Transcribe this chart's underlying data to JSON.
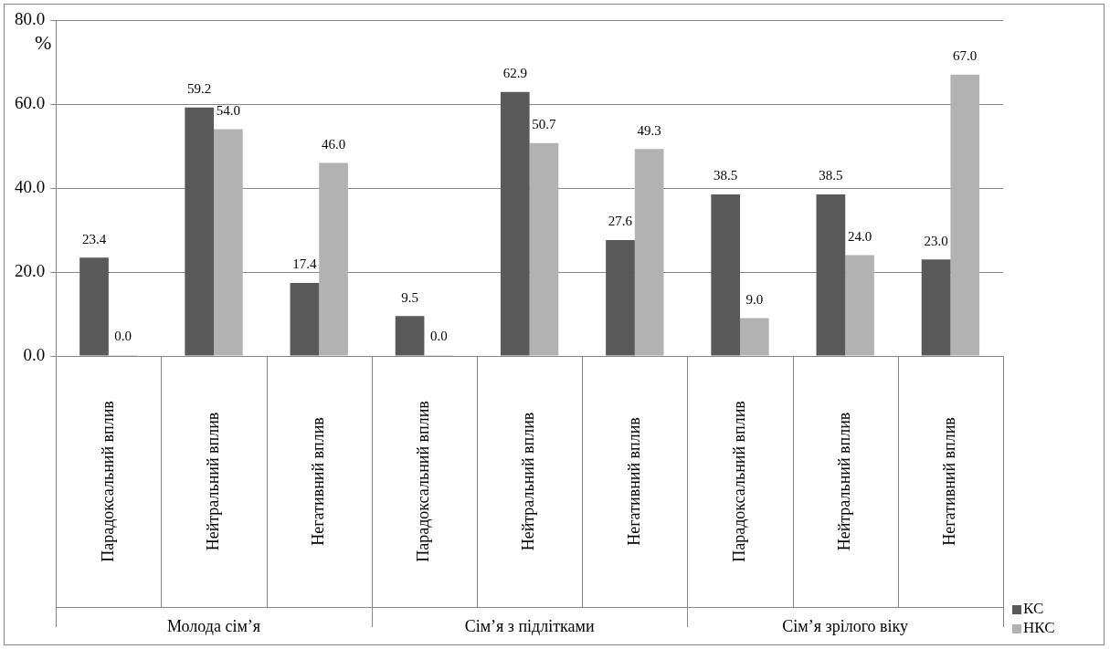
{
  "chart_data": {
    "type": "bar",
    "ylabel": "%",
    "categories": [
      "Парадоксальний вплив",
      "Нейтральний вплив",
      "Негативний вплив",
      "Парадоксальний вплив",
      "Нейтральний вплив",
      "Негативний вплив",
      "Парадоксальний вплив",
      "Нейтральний вплив",
      "Негативний вплив"
    ],
    "annotations": [
      "Молода сім’я",
      "Сім’я з підлітками",
      "Сім’я зрілого віку"
    ],
    "series": [
      {
        "name": "КС",
        "color": "#595959",
        "values": [
          23.4,
          59.2,
          17.4,
          9.5,
          62.9,
          27.6,
          38.5,
          38.5,
          23.0
        ],
        "value_labels": [
          "23.4",
          "59.2",
          "17.4",
          "9.5",
          "62.9",
          "27.6",
          "38.5",
          "38.5",
          "23.0"
        ]
      },
      {
        "name": "НКС",
        "color": "#b2b2b2",
        "values": [
          0,
          54.0,
          46.0,
          0,
          50.7,
          49.3,
          9.0,
          24.0,
          67.0
        ],
        "value_labels": [
          "0.0",
          "54.0",
          "46.0",
          "0.0",
          "50.7",
          "49.3",
          "9.0",
          "24.0",
          "67.0"
        ]
      }
    ],
    "ylim": [
      0,
      80
    ],
    "yticks": [
      {
        "value": 0,
        "label": "0.0"
      },
      {
        "value": 20,
        "label": "20.0"
      },
      {
        "value": 40,
        "label": "40.0"
      },
      {
        "value": 60,
        "label": "60.0"
      },
      {
        "value": 80,
        "label": "80.0"
      }
    ],
    "grid": "y",
    "legend": "bottom right"
  }
}
